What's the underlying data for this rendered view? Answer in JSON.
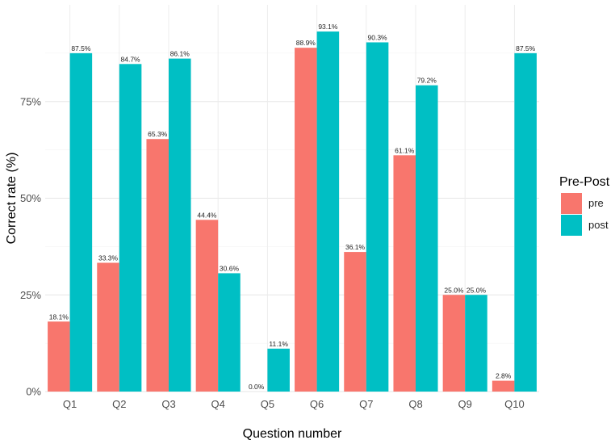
{
  "chart_data": {
    "type": "bar",
    "title": "",
    "xlabel": "Question number",
    "ylabel": "Correct rate (%)",
    "ylim": [
      0,
      100
    ],
    "yticks": [
      0,
      25,
      50,
      75
    ],
    "ytick_labels": [
      "0%",
      "25%",
      "50%",
      "75%"
    ],
    "categories": [
      "Q1",
      "Q2",
      "Q3",
      "Q4",
      "Q5",
      "Q6",
      "Q7",
      "Q8",
      "Q9",
      "Q10"
    ],
    "series": [
      {
        "name": "pre",
        "color": "#F8766D",
        "values": [
          18.1,
          33.3,
          65.3,
          44.4,
          0.0,
          88.9,
          36.1,
          61.1,
          25.0,
          2.8
        ],
        "labels": [
          "18.1%",
          "33.3%",
          "65.3%",
          "44.4%",
          "0.0%",
          "88.9%",
          "36.1%",
          "61.1%",
          "25.0%",
          "2.8%"
        ]
      },
      {
        "name": "post",
        "color": "#00BFC4",
        "values": [
          87.5,
          84.7,
          86.1,
          30.6,
          11.1,
          93.1,
          90.3,
          79.2,
          25.0,
          87.5
        ],
        "labels": [
          "87.5%",
          "84.7%",
          "86.1%",
          "30.6%",
          "11.1%",
          "93.1%",
          "90.3%",
          "79.2%",
          "25.0%",
          "87.5%"
        ]
      }
    ],
    "legend": {
      "title": "Pre-Post",
      "placement": "right"
    },
    "grid": true
  }
}
